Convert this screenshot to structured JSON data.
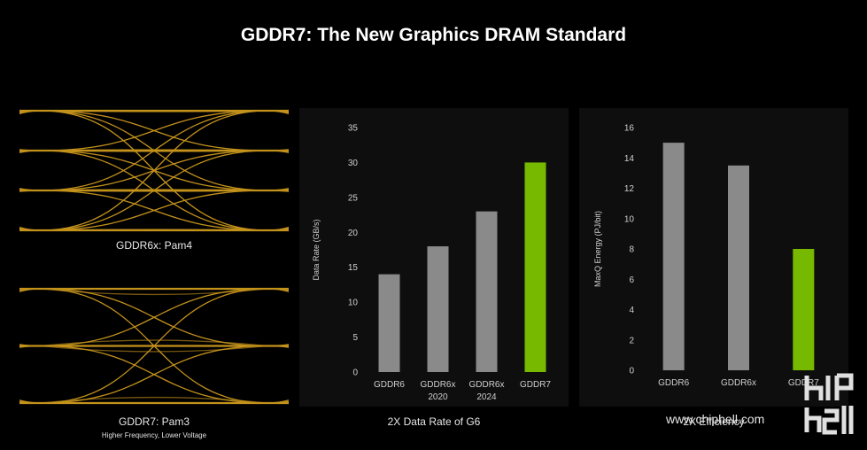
{
  "page": {
    "title": "GDDR7: The New Graphics DRAM Standard"
  },
  "eye_diagrams": [
    {
      "caption": "GDDR6x: Pam4",
      "levels": 4
    },
    {
      "caption": "GDDR7: Pam3",
      "subcaption": "Higher Frequency, Lower Voltage",
      "levels": 3
    }
  ],
  "colors": {
    "eye": "#d9a21f",
    "bar_gray": "#8a8a8a",
    "bar_green": "#76b900",
    "axis_text": "#cfcfcf"
  },
  "watermark": {
    "text": "www.chiphell.com"
  },
  "chart_data": [
    {
      "type": "bar",
      "title": "",
      "xlabel": "2X Data Rate of G6",
      "ylabel": "Data Rate (GB/s)",
      "ylim": [
        0,
        35
      ],
      "yticks": [
        0,
        5,
        10,
        15,
        20,
        25,
        30,
        35
      ],
      "categories": [
        [
          "GDDR6"
        ],
        [
          "GDDR6x",
          "2020"
        ],
        [
          "GDDR6x",
          "2024"
        ],
        [
          "GDDR7"
        ]
      ],
      "values": [
        14,
        18,
        23,
        30
      ],
      "highlight_index": 3
    },
    {
      "type": "bar",
      "title": "",
      "xlabel": "2X Efficiency",
      "ylabel": "MaxQ Energy (PJ/bit)",
      "ylim": [
        0,
        16
      ],
      "yticks": [
        0,
        2,
        4,
        6,
        8,
        10,
        12,
        14,
        16
      ],
      "categories": [
        [
          "GDDR6"
        ],
        [
          "GDDR6x"
        ],
        [
          "GDDR7"
        ]
      ],
      "values": [
        15,
        13.5,
        8
      ],
      "highlight_index": 2
    }
  ]
}
